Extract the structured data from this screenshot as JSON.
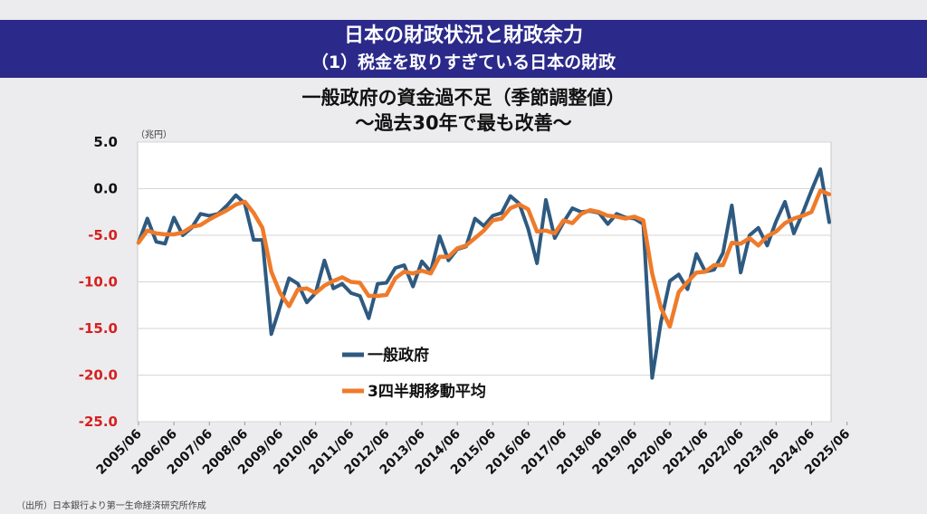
{
  "header": {
    "title": "日本の財政状況と財政余力",
    "subtitle": "（1）税金を取りすぎている日本の財政"
  },
  "source": "（出所）日本銀行より第一生命経済研究所作成",
  "colors": {
    "banner": "#2b2a8a",
    "series_general_government": "#2e5a80",
    "series_moving_average": "#ef7b2a"
  },
  "chart_data": {
    "type": "line",
    "title": "一般政府の資金過不足（季節調整値）",
    "subtitle": "～過去30年で最も改善～",
    "unit": "（兆円）",
    "ylim": [
      -25,
      5
    ],
    "yticks": [
      "5.0",
      "0.0",
      "-5.0",
      "-10.0",
      "-15.0",
      "-20.0",
      "-25.0"
    ],
    "ytick_values": [
      5,
      0,
      -5,
      -10,
      -15,
      -20,
      -25
    ],
    "negative_tick_color": "#d62020",
    "grid": true,
    "xticks": [
      "2005/06",
      "2006/06",
      "2007/06",
      "2008/06",
      "2009/06",
      "2010/06",
      "2011/06",
      "2012/06",
      "2013/06",
      "2014/06",
      "2015/06",
      "2016/06",
      "2017/06",
      "2018/06",
      "2019/06",
      "2020/06",
      "2021/06",
      "2022/06",
      "2023/06",
      "2024/06",
      "2025/06"
    ],
    "x_start": "2005/06",
    "x_end": "2025/09",
    "legend_position": "center-left",
    "series": [
      {
        "name": "一般政府",
        "values": [
          -5.8,
          -3.2,
          -5.7,
          -5.9,
          -3.1,
          -5.0,
          -4.2,
          -2.7,
          -2.9,
          -2.7,
          -1.8,
          -0.7,
          -1.6,
          -5.5,
          -5.5,
          -15.6,
          -12.6,
          -9.6,
          -10.2,
          -12.2,
          -11.2,
          -7.7,
          -10.7,
          -10.2,
          -11.2,
          -11.5,
          -13.9,
          -10.2,
          -10.1,
          -8.5,
          -8.2,
          -10.5,
          -7.8,
          -8.9,
          -5.1,
          -7.7,
          -6.5,
          -6.2,
          -3.2,
          -4.0,
          -2.9,
          -2.6,
          -0.8,
          -1.6,
          -4.3,
          -8.0,
          -1.2,
          -5.3,
          -3.6,
          -2.1,
          -2.5,
          -2.4,
          -2.6,
          -3.8,
          -2.7,
          -3.1,
          -3.2,
          -3.8,
          -20.3,
          -14.3,
          -9.9,
          -9.2,
          -10.8,
          -7.0,
          -8.9,
          -8.7,
          -6.9,
          -1.8,
          -9.0,
          -5.0,
          -4.2,
          -6.1,
          -3.5,
          -1.4,
          -4.8,
          -2.6,
          -0.2,
          2.1,
          -3.6
        ],
        "color": "#2e5a80"
      },
      {
        "name": "3四半期移動平均",
        "values": [
          -5.8,
          -4.5,
          -4.8,
          -4.9,
          -4.9,
          -4.7,
          -4.1,
          -3.9,
          -3.3,
          -2.8,
          -2.3,
          -1.7,
          -1.4,
          -2.6,
          -4.2,
          -8.9,
          -11.2,
          -12.6,
          -10.8,
          -10.7,
          -11.2,
          -10.4,
          -9.9,
          -9.5,
          -10.0,
          -10.1,
          -11.5,
          -11.5,
          -11.4,
          -9.6,
          -8.9,
          -9.1,
          -8.8,
          -9.1,
          -7.3,
          -7.3,
          -6.4,
          -6.1,
          -5.3,
          -4.5,
          -3.4,
          -3.2,
          -2.1,
          -1.7,
          -2.2,
          -4.6,
          -4.5,
          -4.8,
          -3.4,
          -3.7,
          -2.7,
          -2.3,
          -2.5,
          -2.9,
          -3.0,
          -3.2,
          -3.0,
          -3.4,
          -9.1,
          -12.8,
          -14.8,
          -11.1,
          -10.0,
          -9.0,
          -8.9,
          -8.2,
          -8.2,
          -5.8,
          -5.9,
          -5.3,
          -6.1,
          -5.1,
          -4.6,
          -3.7,
          -3.2,
          -2.9,
          -2.5,
          -0.2,
          -0.6
        ],
        "color": "#ef7b2a"
      }
    ]
  }
}
